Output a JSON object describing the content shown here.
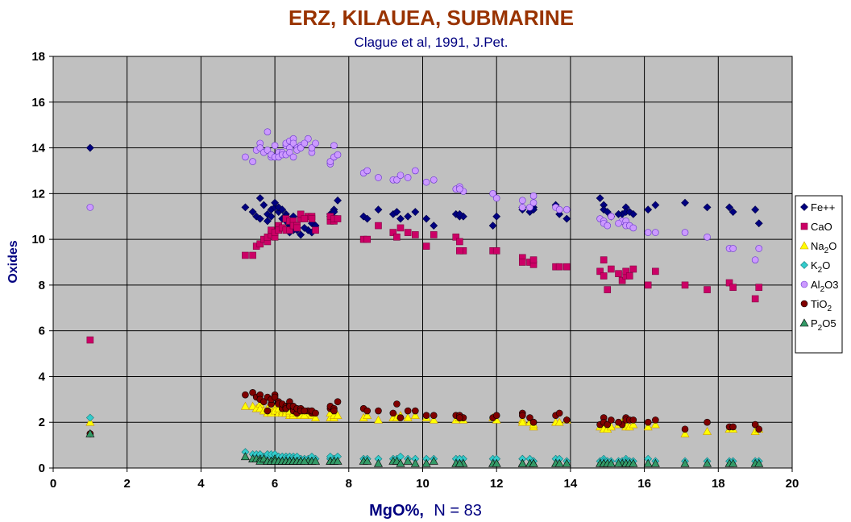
{
  "chart_data": {
    "type": "scatter",
    "title": "ERZ, KILAUEA, SUBMARINE",
    "subtitle": "Clague et al, 1991, J.Pet.",
    "xlabel": "MgO%,",
    "xlabel_suffix": "N = 83",
    "ylabel": "Oxides",
    "xlim": [
      0,
      20
    ],
    "ylim": [
      0,
      18
    ],
    "x_ticks": [
      "0",
      "2",
      "4",
      "6",
      "8",
      "10",
      "12",
      "14",
      "16",
      "18",
      "20"
    ],
    "y_ticks": [
      "0",
      "2",
      "4",
      "6",
      "8",
      "10",
      "12",
      "14",
      "16",
      "18"
    ],
    "grid": true,
    "legend_position": "right",
    "colors": {
      "title": "#993300",
      "subtitle": "#000080",
      "axis_label": "#000080",
      "plot_background": "#c0c0c0"
    },
    "x": [
      1.0,
      5.2,
      5.4,
      5.5,
      5.6,
      5.6,
      5.7,
      5.8,
      5.8,
      5.9,
      5.9,
      6.0,
      6.0,
      6.1,
      6.1,
      6.2,
      6.2,
      6.3,
      6.3,
      6.3,
      6.4,
      6.4,
      6.4,
      6.5,
      6.5,
      6.5,
      6.6,
      6.6,
      6.7,
      6.7,
      6.9,
      7.0,
      7.0,
      7.1,
      7.5,
      7.5,
      7.6,
      7.6,
      7.7,
      8.4,
      8.5,
      8.8,
      9.2,
      9.3,
      9.4,
      9.6,
      9.8,
      10.1,
      10.3,
      10.9,
      11.0,
      11.1,
      11.9,
      12.0,
      12.7,
      12.7,
      12.9,
      13.0,
      13.6,
      13.7,
      13.9,
      14.8,
      14.9,
      14.9,
      15.0,
      15.1,
      15.4,
      15.5,
      15.5,
      15.6,
      15.7,
      16.1,
      16.3,
      17.1,
      17.7,
      18.3,
      18.4,
      19.0,
      19.1,
      11.0,
      13.0,
      15.3,
      6.8
    ],
    "series": [
      {
        "name": "Fe++",
        "marker": "diamond",
        "color": "#000080",
        "values": [
          14.0,
          11.4,
          11.2,
          11.0,
          10.9,
          11.8,
          11.5,
          11.1,
          10.8,
          11.3,
          11.0,
          11.4,
          11.6,
          11.2,
          11.4,
          11.3,
          10.9,
          11.1,
          11.0,
          10.8,
          10.6,
          10.5,
          10.3,
          10.7,
          11.0,
          10.4,
          10.5,
          10.4,
          11.0,
          10.2,
          10.4,
          10.7,
          10.3,
          10.6,
          11.0,
          11.1,
          11.3,
          11.2,
          11.7,
          11.0,
          10.9,
          11.3,
          11.1,
          11.2,
          10.9,
          11.0,
          11.2,
          10.9,
          10.6,
          11.1,
          11.0,
          11.0,
          10.6,
          11.0,
          11.3,
          11.4,
          11.2,
          11.4,
          11.5,
          11.1,
          10.9,
          11.8,
          11.5,
          11.3,
          11.2,
          11.0,
          11.1,
          11.4,
          11.2,
          11.2,
          11.1,
          11.3,
          11.5,
          11.6,
          11.4,
          11.4,
          11.2,
          11.3,
          10.7,
          11.1,
          11.3,
          11.1,
          10.5
        ]
      },
      {
        "name": "CaO",
        "marker": "square",
        "color": "#cc0066",
        "values": [
          5.6,
          9.3,
          9.3,
          9.7,
          9.8,
          9.8,
          10.0,
          9.9,
          10.1,
          10.2,
          10.4,
          10.1,
          10.3,
          10.6,
          10.4,
          10.5,
          10.5,
          10.4,
          10.4,
          10.9,
          10.4,
          10.8,
          10.8,
          10.6,
          10.8,
          10.6,
          10.6,
          10.5,
          10.9,
          11.1,
          11.0,
          11.0,
          10.9,
          10.4,
          10.8,
          11.0,
          10.8,
          10.9,
          10.9,
          10.0,
          10.0,
          10.6,
          10.3,
          10.1,
          10.5,
          10.3,
          10.2,
          9.7,
          10.2,
          10.1,
          9.9,
          9.5,
          9.5,
          9.5,
          9.2,
          9.0,
          9.0,
          8.9,
          8.8,
          8.8,
          8.8,
          8.6,
          8.4,
          9.1,
          7.8,
          8.7,
          8.2,
          8.4,
          8.6,
          8.4,
          8.7,
          8.0,
          8.6,
          8.0,
          7.8,
          8.1,
          7.9,
          7.4,
          7.9,
          9.5,
          9.1,
          8.5,
          10.9
        ]
      },
      {
        "name": "Na2O",
        "marker": "triangle",
        "color": "#ffff00",
        "values": [
          2.0,
          2.7,
          2.7,
          2.6,
          2.8,
          2.6,
          2.5,
          2.6,
          2.4,
          2.5,
          2.4,
          2.6,
          2.5,
          2.4,
          2.6,
          2.5,
          2.4,
          2.5,
          2.4,
          2.4,
          2.3,
          2.4,
          2.5,
          2.4,
          2.3,
          2.4,
          2.4,
          2.4,
          2.4,
          2.3,
          2.3,
          2.3,
          2.3,
          2.2,
          2.2,
          2.4,
          2.2,
          2.3,
          2.3,
          2.2,
          2.3,
          2.1,
          2.2,
          2.2,
          2.3,
          2.2,
          2.3,
          2.2,
          2.1,
          2.1,
          2.2,
          2.1,
          2.2,
          2.1,
          2.1,
          2.0,
          2.0,
          1.8,
          2.0,
          2.0,
          2.1,
          1.8,
          1.9,
          1.7,
          1.7,
          1.8,
          2.0,
          1.8,
          1.9,
          1.8,
          1.9,
          1.8,
          1.9,
          1.5,
          1.6,
          1.7,
          1.7,
          1.6,
          1.7,
          2.2,
          1.9,
          1.9,
          2.3
        ]
      },
      {
        "name": "K2O",
        "marker": "diamond",
        "color": "#33cccc",
        "values": [
          2.2,
          0.7,
          0.6,
          0.6,
          0.6,
          0.6,
          0.5,
          0.6,
          0.6,
          0.5,
          0.6,
          0.6,
          0.6,
          0.5,
          0.5,
          0.5,
          0.5,
          0.5,
          0.5,
          0.4,
          0.4,
          0.5,
          0.5,
          0.5,
          0.4,
          0.4,
          0.4,
          0.5,
          0.4,
          0.4,
          0.4,
          0.4,
          0.5,
          0.4,
          0.4,
          0.5,
          0.4,
          0.4,
          0.5,
          0.4,
          0.4,
          0.4,
          0.4,
          0.4,
          0.5,
          0.4,
          0.4,
          0.4,
          0.4,
          0.4,
          0.4,
          0.4,
          0.4,
          0.4,
          0.4,
          0.4,
          0.4,
          0.3,
          0.4,
          0.4,
          0.3,
          0.3,
          0.4,
          0.3,
          0.3,
          0.3,
          0.3,
          0.4,
          0.3,
          0.3,
          0.3,
          0.4,
          0.3,
          0.3,
          0.3,
          0.3,
          0.3,
          0.3,
          0.3,
          0.4,
          0.3,
          0.3,
          0.4
        ]
      },
      {
        "name": "Al2O3",
        "marker": "circle",
        "color": "#cc99ff",
        "values": [
          11.4,
          13.6,
          13.4,
          13.9,
          14.2,
          14.0,
          13.8,
          14.7,
          13.9,
          13.6,
          13.7,
          13.6,
          14.1,
          13.8,
          13.6,
          13.8,
          13.7,
          14.1,
          13.7,
          14.2,
          14.3,
          14.0,
          13.8,
          13.6,
          14.4,
          14.2,
          14.0,
          13.9,
          14.1,
          14.0,
          14.4,
          13.8,
          14.0,
          14.2,
          13.3,
          13.4,
          14.1,
          13.6,
          13.7,
          12.9,
          13.0,
          12.7,
          12.6,
          12.6,
          12.8,
          12.7,
          13.0,
          12.5,
          12.6,
          12.2,
          12.3,
          12.1,
          12.0,
          11.8,
          11.7,
          11.4,
          11.4,
          11.9,
          11.4,
          11.3,
          11.3,
          10.9,
          10.8,
          10.7,
          10.6,
          11.0,
          10.8,
          10.8,
          10.6,
          10.6,
          10.5,
          10.3,
          10.3,
          10.3,
          10.1,
          9.6,
          9.6,
          9.1,
          9.6,
          12.2,
          11.6,
          10.7,
          14.2
        ]
      },
      {
        "name": "TiO2",
        "marker": "circle",
        "color": "#800000",
        "values": [
          1.5,
          3.2,
          3.3,
          3.1,
          3.2,
          3.0,
          2.9,
          2.5,
          3.1,
          2.8,
          3.0,
          3.2,
          3.1,
          2.9,
          2.8,
          2.6,
          2.8,
          2.6,
          2.7,
          2.6,
          2.8,
          2.9,
          2.7,
          2.6,
          2.5,
          2.7,
          2.4,
          2.6,
          2.6,
          2.5,
          2.5,
          2.4,
          2.5,
          2.4,
          2.6,
          2.7,
          2.6,
          2.5,
          2.9,
          2.6,
          2.5,
          2.5,
          2.4,
          2.8,
          2.2,
          2.5,
          2.5,
          2.3,
          2.3,
          2.3,
          2.3,
          2.2,
          2.2,
          2.3,
          2.4,
          2.3,
          2.2,
          2.0,
          2.3,
          2.4,
          2.1,
          1.9,
          2.2,
          2.0,
          1.9,
          2.1,
          1.9,
          2.2,
          2.1,
          2.1,
          2.1,
          2.0,
          2.1,
          1.7,
          2.0,
          1.8,
          1.8,
          1.9,
          1.7,
          2.2,
          2.0,
          2.0,
          2.5
        ]
      },
      {
        "name": "P2O5",
        "marker": "triangle",
        "color": "#339966",
        "values": [
          1.5,
          0.5,
          0.4,
          0.4,
          0.4,
          0.3,
          0.4,
          0.3,
          0.3,
          0.3,
          0.3,
          0.4,
          0.3,
          0.3,
          0.3,
          0.3,
          0.3,
          0.3,
          0.3,
          0.3,
          0.3,
          0.3,
          0.3,
          0.3,
          0.3,
          0.3,
          0.3,
          0.3,
          0.3,
          0.3,
          0.3,
          0.3,
          0.3,
          0.3,
          0.3,
          0.3,
          0.3,
          0.3,
          0.3,
          0.3,
          0.3,
          0.2,
          0.3,
          0.3,
          0.2,
          0.3,
          0.2,
          0.2,
          0.3,
          0.2,
          0.2,
          0.2,
          0.2,
          0.2,
          0.2,
          0.2,
          0.2,
          0.2,
          0.2,
          0.2,
          0.2,
          0.2,
          0.2,
          0.2,
          0.2,
          0.2,
          0.2,
          0.2,
          0.2,
          0.2,
          0.2,
          0.2,
          0.2,
          0.2,
          0.2,
          0.2,
          0.2,
          0.2,
          0.2,
          0.2,
          0.2,
          0.2,
          0.3
        ]
      }
    ],
    "legend": [
      {
        "base": "Fe++",
        "sub": "",
        "tail": ""
      },
      {
        "base": "CaO",
        "sub": "",
        "tail": ""
      },
      {
        "base": "Na",
        "sub": "2",
        "tail": "O"
      },
      {
        "base": "K",
        "sub": "2",
        "tail": "O"
      },
      {
        "base": "Al",
        "sub": "2",
        "tail": "O3"
      },
      {
        "base": "TiO",
        "sub": "2",
        "tail": ""
      },
      {
        "base": "P",
        "sub": "2",
        "tail": "O5"
      }
    ]
  }
}
